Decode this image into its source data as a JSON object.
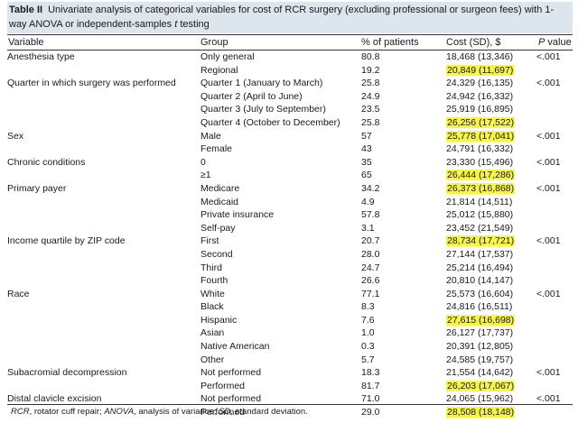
{
  "caption": {
    "label": "Table II",
    "text_before": "Univariate analysis of categorical variables for cost of RCR surgery (excluding professional or surgeon fees) with 1-way ANOVA or independent-samples ",
    "t_italic": "t",
    "text_after": " testing"
  },
  "header": {
    "variable": "Variable",
    "group": "Group",
    "pct": "% of patients",
    "cost": "Cost (SD), $",
    "p_italic": "P",
    "p_rest": " value"
  },
  "rows": [
    {
      "variable": "Anesthesia type",
      "group": "Only general",
      "pct": "80.8",
      "cost": "18,468 (13,346)",
      "p": "<.001",
      "highlight": false
    },
    {
      "variable": "",
      "group": "Regional",
      "pct": "19.2",
      "cost": "20,849 (11,697)",
      "p": "",
      "highlight": true
    },
    {
      "variable": "Quarter in which surgery was performed",
      "group": "Quarter 1 (January to March)",
      "pct": "25.8",
      "cost": "24,329 (16,135)",
      "p": "<.001",
      "highlight": false
    },
    {
      "variable": "",
      "group": "Quarter 2 (April to June)",
      "pct": "24.9",
      "cost": "24,942 (16,332)",
      "p": "",
      "highlight": false
    },
    {
      "variable": "",
      "group": "Quarter 3 (July to September)",
      "pct": "23.5",
      "cost": "25,919 (16,895)",
      "p": "",
      "highlight": false
    },
    {
      "variable": "",
      "group": "Quarter 4 (October to December)",
      "pct": "25.8",
      "cost": "26,256 (17,522)",
      "p": "",
      "highlight": true
    },
    {
      "variable": "Sex",
      "group": "Male",
      "pct": "57",
      "cost": "25,778 (17,041)",
      "p": "<.001",
      "highlight": true
    },
    {
      "variable": "",
      "group": "Female",
      "pct": "43",
      "cost": "24,791 (16,332)",
      "p": "",
      "highlight": false
    },
    {
      "variable": "Chronic conditions",
      "group": "0",
      "pct": "35",
      "cost": "23,330 (15,496)",
      "p": "<.001",
      "highlight": false
    },
    {
      "variable": "",
      "group": "≥1",
      "pct": "65",
      "cost": "26,444 (17,286)",
      "p": "",
      "highlight": true
    },
    {
      "variable": "Primary payer",
      "group": "Medicare",
      "pct": "34.2",
      "cost": "26,373 (16,868)",
      "p": "<.001",
      "highlight": true
    },
    {
      "variable": "",
      "group": "Medicaid",
      "pct": "4.9",
      "cost": "21,814 (14,511)",
      "p": "",
      "highlight": false
    },
    {
      "variable": "",
      "group": "Private insurance",
      "pct": "57.8",
      "cost": "25,012 (15,880)",
      "p": "",
      "highlight": false
    },
    {
      "variable": "",
      "group": "Self-pay",
      "pct": "3.1",
      "cost": "23,452 (21,549)",
      "p": "",
      "highlight": false
    },
    {
      "variable": "Income quartile by ZIP code",
      "group": "First",
      "pct": "20.7",
      "cost": "28,734 (17,721)",
      "p": "<.001",
      "highlight": true
    },
    {
      "variable": "",
      "group": "Second",
      "pct": "28.0",
      "cost": "27,144 (17,537)",
      "p": "",
      "highlight": false
    },
    {
      "variable": "",
      "group": "Third",
      "pct": "24.7",
      "cost": "25,214 (16,494)",
      "p": "",
      "highlight": false
    },
    {
      "variable": "",
      "group": "Fourth",
      "pct": "26.6",
      "cost": "20,810 (14,147)",
      "p": "",
      "highlight": false
    },
    {
      "variable": "Race",
      "group": "White",
      "pct": "77.1",
      "cost": "25,573 (16,604)",
      "p": "<.001",
      "highlight": false
    },
    {
      "variable": "",
      "group": "Black",
      "pct": "8.3",
      "cost": "24,816 (16,511)",
      "p": "",
      "highlight": false
    },
    {
      "variable": "",
      "group": "Hispanic",
      "pct": "7.6",
      "cost": "27,615 (16,698)",
      "p": "",
      "highlight": true
    },
    {
      "variable": "",
      "group": "Asian",
      "pct": "1.0",
      "cost": "26,127 (17,737)",
      "p": "",
      "highlight": false
    },
    {
      "variable": "",
      "group": "Native American",
      "pct": "0.3",
      "cost": "20,391 (12,805)",
      "p": "",
      "highlight": false
    },
    {
      "variable": "",
      "group": "Other",
      "pct": "5.7",
      "cost": "24,585 (19,757)",
      "p": "",
      "highlight": false
    },
    {
      "variable": "Subacromial decompression",
      "group": "Not performed",
      "pct": "18.3",
      "cost": "21,554 (14,642)",
      "p": "<.001",
      "highlight": false
    },
    {
      "variable": "",
      "group": "Performed",
      "pct": "81.7",
      "cost": "26,203 (17,067)",
      "p": "",
      "highlight": true
    },
    {
      "variable": "Distal clavicle excision",
      "group": "Not performed",
      "pct": "71.0",
      "cost": "24,065 (15,962)",
      "p": "<.001",
      "highlight": false
    },
    {
      "variable": "",
      "group": "Performed",
      "pct": "29.0",
      "cost": "28,508 (18,148)",
      "p": "",
      "highlight": true
    }
  ],
  "footnote": {
    "rcr_abbr": "RCR",
    "rcr_def": ", rotator cuff repair; ",
    "anova_abbr": "ANOVA",
    "anova_def": ", analysis of variance; ",
    "sd_abbr": "SD",
    "sd_def": ", standard deviation."
  }
}
